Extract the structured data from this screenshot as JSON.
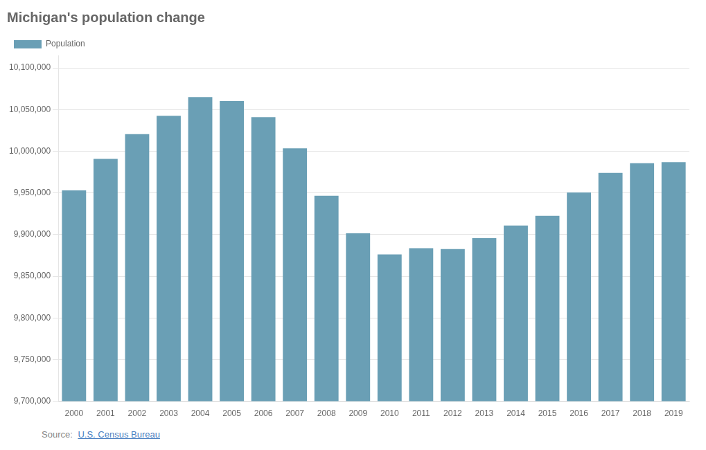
{
  "chart_data": {
    "type": "bar",
    "title": "Michigan's population change",
    "categories": [
      "2000",
      "2001",
      "2002",
      "2003",
      "2004",
      "2005",
      "2006",
      "2007",
      "2008",
      "2009",
      "2010",
      "2011",
      "2012",
      "2013",
      "2014",
      "2015",
      "2016",
      "2017",
      "2018",
      "2019"
    ],
    "series": [
      {
        "name": "Population",
        "color": "#6a9fb5",
        "values": [
          9952998,
          9990817,
          10020472,
          10042604,
          10064995,
          10060093,
          10040822,
          10003480,
          9946535,
          9901591,
          9876187,
          9883635,
          9882545,
          9895622,
          9910912,
          9922576,
          9950571,
          9973907,
          9985645,
          9986857
        ]
      }
    ],
    "ylim": [
      9700000,
      10115000
    ],
    "yticks": [
      {
        "value": 9700000,
        "label": "9,700,000"
      },
      {
        "value": 9750000,
        "label": "9,750,000"
      },
      {
        "value": 9800000,
        "label": "9,800,000"
      },
      {
        "value": 9850000,
        "label": "9,850,000"
      },
      {
        "value": 9900000,
        "label": "9,900,000"
      },
      {
        "value": 9950000,
        "label": "9,950,000"
      },
      {
        "value": 10000000,
        "label": "10,000,000"
      },
      {
        "value": 10050000,
        "label": "10,050,000"
      },
      {
        "value": 10100000,
        "label": "10,100,000"
      }
    ],
    "grid": true,
    "legend": "upper left",
    "annotations": [
      "Source: ",
      "U.S. Census Bureau"
    ]
  }
}
